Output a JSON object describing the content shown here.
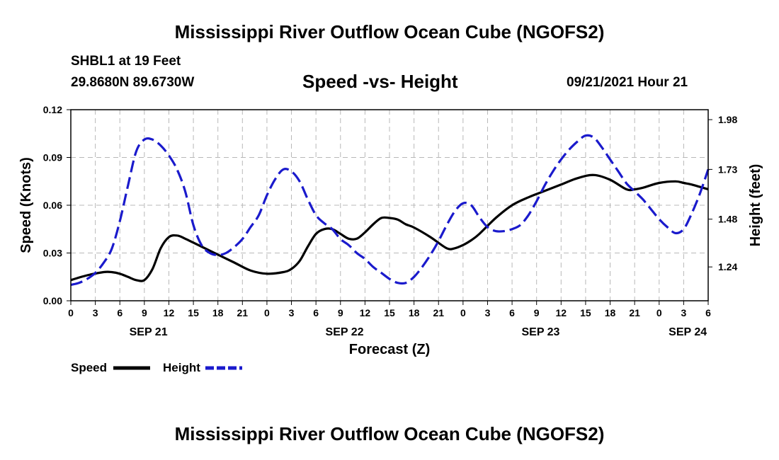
{
  "header": {
    "title": "Mississippi River Outflow Ocean Cube (NGOFS2)",
    "station": "SHBL1 at 19 Feet",
    "coords": "29.8680N  89.6730W",
    "subtitle": "Speed -vs- Height",
    "datetime": "09/21/2021 Hour 21"
  },
  "footer": {
    "title": "Mississippi River Outflow Ocean Cube (NGOFS2)"
  },
  "colors": {
    "speed": "#000000",
    "height": "#1a1acc",
    "grid": "#b8b8b8"
  },
  "chart_data": {
    "type": "line",
    "title": "Speed -vs- Height",
    "xlabel": "Forecast (Z)",
    "ylabel": "Speed (Knots)",
    "y2label": "Height (feet)",
    "grid": true,
    "legend_position": "bottom-left",
    "x_unit": "hours since 09/21/2021 00Z",
    "xlim": [
      0,
      78
    ],
    "ylim": [
      0,
      0.12
    ],
    "y2lim": [
      1.07,
      2.03
    ],
    "x_ticks": [
      0,
      3,
      6,
      9,
      12,
      15,
      18,
      21,
      24,
      27,
      30,
      33,
      36,
      39,
      42,
      45,
      48,
      51,
      54,
      57,
      60,
      63,
      66,
      69,
      72,
      75,
      78
    ],
    "x_tick_labels": [
      "0",
      "3",
      "6",
      "9",
      "12",
      "15",
      "18",
      "21",
      "0",
      "3",
      "6",
      "9",
      "12",
      "15",
      "18",
      "21",
      "0",
      "3",
      "6",
      "9",
      "12",
      "15",
      "18",
      "21",
      "0",
      "3",
      "6"
    ],
    "y_ticks": [
      0,
      0.03,
      0.06,
      0.09,
      0.12
    ],
    "y_tick_labels": [
      "0.00",
      "0.03",
      "0.06",
      "0.09",
      "0.12"
    ],
    "y2_ticks": [
      1.24,
      1.48,
      1.73,
      1.98
    ],
    "y2_tick_labels": [
      "1.24",
      "1.48",
      "1.73",
      "1.98"
    ],
    "date_labels": [
      {
        "x": 9.5,
        "label": "SEP 21"
      },
      {
        "x": 33.5,
        "label": "SEP 22"
      },
      {
        "x": 57.5,
        "label": "SEP 23"
      },
      {
        "x": 75.5,
        "label": "SEP 24"
      }
    ],
    "series": [
      {
        "name": "Speed",
        "axis": "left",
        "style": "solid",
        "x": [
          0,
          2,
          4,
          5,
          6,
          7,
          8,
          9,
          10,
          11,
          12,
          13,
          14,
          16,
          18,
          20,
          22,
          24,
          26,
          27,
          28,
          29,
          30,
          31,
          32,
          33,
          34,
          35,
          36,
          37,
          38,
          39,
          40,
          41,
          42,
          44,
          46,
          47,
          48,
          49,
          50,
          52,
          54,
          56,
          58,
          60,
          62,
          64,
          66,
          68,
          69,
          70,
          72,
          74,
          75,
          76,
          78
        ],
        "values": [
          0.013,
          0.016,
          0.018,
          0.018,
          0.017,
          0.015,
          0.013,
          0.013,
          0.02,
          0.033,
          0.04,
          0.041,
          0.039,
          0.034,
          0.029,
          0.024,
          0.019,
          0.017,
          0.018,
          0.02,
          0.025,
          0.034,
          0.042,
          0.045,
          0.045,
          0.042,
          0.039,
          0.039,
          0.043,
          0.048,
          0.052,
          0.052,
          0.051,
          0.048,
          0.046,
          0.04,
          0.033,
          0.033,
          0.035,
          0.038,
          0.042,
          0.052,
          0.06,
          0.065,
          0.069,
          0.073,
          0.077,
          0.079,
          0.076,
          0.07,
          0.07,
          0.071,
          0.074,
          0.075,
          0.074,
          0.073,
          0.07
        ]
      },
      {
        "name": "Height",
        "axis": "right",
        "style": "dashed",
        "x": [
          0,
          1,
          2,
          3,
          4,
          5,
          6,
          7,
          8,
          9,
          10,
          11,
          12,
          13,
          14,
          15,
          16,
          17,
          18,
          19,
          20,
          21,
          22,
          23,
          24,
          25,
          26,
          27,
          28,
          29,
          30,
          31,
          32,
          33,
          34,
          35,
          36,
          37,
          38,
          39,
          40,
          41,
          42,
          43,
          44,
          45,
          46,
          47,
          48,
          49,
          50,
          51,
          52,
          53,
          54,
          55,
          56,
          57,
          58,
          59,
          60,
          61,
          62,
          63,
          64,
          65,
          66,
          67,
          68,
          69,
          70,
          71,
          72,
          73,
          74,
          75,
          76,
          77,
          78
        ],
        "values": [
          1.15,
          1.16,
          1.18,
          1.21,
          1.26,
          1.33,
          1.47,
          1.65,
          1.82,
          1.88,
          1.88,
          1.85,
          1.8,
          1.73,
          1.62,
          1.45,
          1.35,
          1.31,
          1.3,
          1.31,
          1.34,
          1.38,
          1.44,
          1.5,
          1.6,
          1.68,
          1.73,
          1.72,
          1.67,
          1.58,
          1.5,
          1.46,
          1.43,
          1.38,
          1.35,
          1.31,
          1.28,
          1.24,
          1.21,
          1.18,
          1.16,
          1.16,
          1.19,
          1.24,
          1.3,
          1.37,
          1.45,
          1.52,
          1.56,
          1.55,
          1.49,
          1.44,
          1.42,
          1.42,
          1.43,
          1.45,
          1.5,
          1.57,
          1.65,
          1.72,
          1.78,
          1.83,
          1.87,
          1.9,
          1.89,
          1.84,
          1.78,
          1.72,
          1.66,
          1.62,
          1.58,
          1.53,
          1.48,
          1.44,
          1.41,
          1.43,
          1.51,
          1.61,
          1.73
        ]
      }
    ]
  }
}
